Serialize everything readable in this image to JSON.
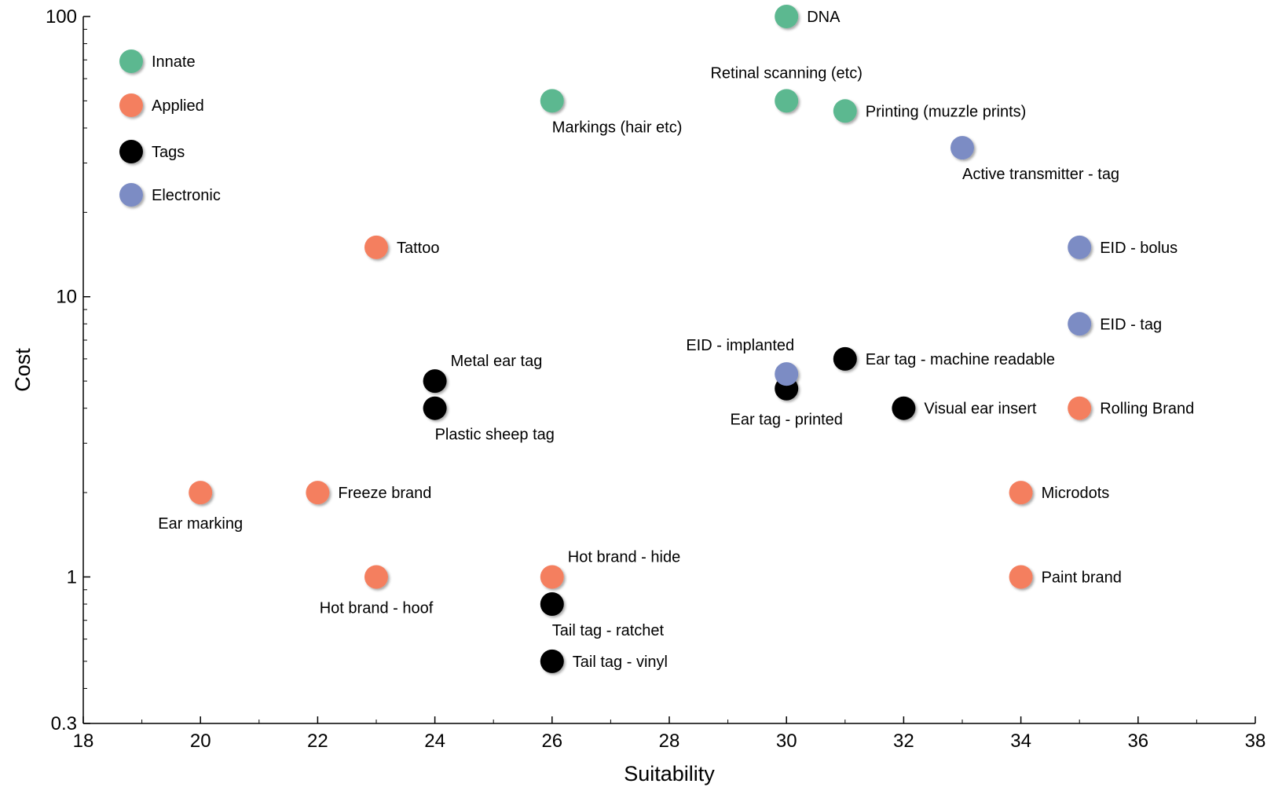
{
  "chart_data": {
    "type": "scatter",
    "title": "",
    "xlabel": "Suitability",
    "ylabel": "Cost",
    "xlim": [
      18,
      38
    ],
    "ylim": [
      0.3,
      100
    ],
    "yscale": "log",
    "grid": false,
    "legend_position": "top-left",
    "x_ticks": [
      18,
      20,
      22,
      24,
      26,
      28,
      30,
      32,
      34,
      36,
      38
    ],
    "x_tick_labels": [
      "18",
      "20",
      "22",
      "24",
      "26",
      "28",
      "30",
      "32",
      "34",
      "36",
      "38"
    ],
    "y_ticks": [
      0.3,
      1,
      10,
      100
    ],
    "y_tick_labels": [
      "0.3",
      "1",
      "10",
      "100"
    ],
    "series": [
      {
        "name": "Innate",
        "color": "#5cb890",
        "points": [
          {
            "x": 30,
            "y": 100,
            "label": "DNA",
            "anchor": "right"
          },
          {
            "x": 30,
            "y": 50,
            "label": "Retinal scanning (etc)",
            "anchor": "above"
          },
          {
            "x": 31,
            "y": 46,
            "label": "Printing (muzzle prints)",
            "anchor": "right"
          },
          {
            "x": 26,
            "y": 50,
            "label": "Markings (hair etc)",
            "anchor": "below-right"
          }
        ]
      },
      {
        "name": "Applied",
        "color": "#f47f5f",
        "points": [
          {
            "x": 23,
            "y": 15,
            "label": "Tattoo",
            "anchor": "right"
          },
          {
            "x": 20,
            "y": 2,
            "label": "Ear marking",
            "anchor": "below"
          },
          {
            "x": 22,
            "y": 2,
            "label": "Freeze brand",
            "anchor": "right"
          },
          {
            "x": 23,
            "y": 1,
            "label": "Hot brand - hoof",
            "anchor": "below"
          },
          {
            "x": 26,
            "y": 1,
            "label": "Hot brand - hide",
            "anchor": "above-right"
          },
          {
            "x": 35,
            "y": 4,
            "label": "Rolling Brand",
            "anchor": "right"
          },
          {
            "x": 34,
            "y": 2,
            "label": "Microdots",
            "anchor": "right"
          },
          {
            "x": 34,
            "y": 1,
            "label": "Paint brand",
            "anchor": "right"
          }
        ]
      },
      {
        "name": "Tags",
        "color": "#000000",
        "points": [
          {
            "x": 24,
            "y": 5,
            "label": "Metal ear tag",
            "anchor": "above-right"
          },
          {
            "x": 24,
            "y": 4,
            "label": "Plastic sheep tag",
            "anchor": "below-right"
          },
          {
            "x": 26,
            "y": 0.8,
            "label": "Tail tag - ratchet",
            "anchor": "below-right"
          },
          {
            "x": 26,
            "y": 0.5,
            "label": "Tail tag - vinyl",
            "anchor": "right"
          },
          {
            "x": 30,
            "y": 4.7,
            "label": "Ear tag - printed",
            "anchor": "below"
          },
          {
            "x": 31,
            "y": 6,
            "label": "Ear tag - machine readable",
            "anchor": "right"
          },
          {
            "x": 32,
            "y": 4,
            "label": "Visual ear insert",
            "anchor": "right"
          }
        ]
      },
      {
        "name": "Electronic",
        "color": "#7b8cc4",
        "points": [
          {
            "x": 33,
            "y": 34,
            "label": "Active transmitter - tag",
            "anchor": "below-right"
          },
          {
            "x": 35,
            "y": 15,
            "label": "EID - bolus",
            "anchor": "right"
          },
          {
            "x": 35,
            "y": 8,
            "label": "EID - tag",
            "anchor": "right"
          },
          {
            "x": 30,
            "y": 5.3,
            "label": "EID - implanted",
            "anchor": "above-left"
          }
        ]
      }
    ]
  }
}
